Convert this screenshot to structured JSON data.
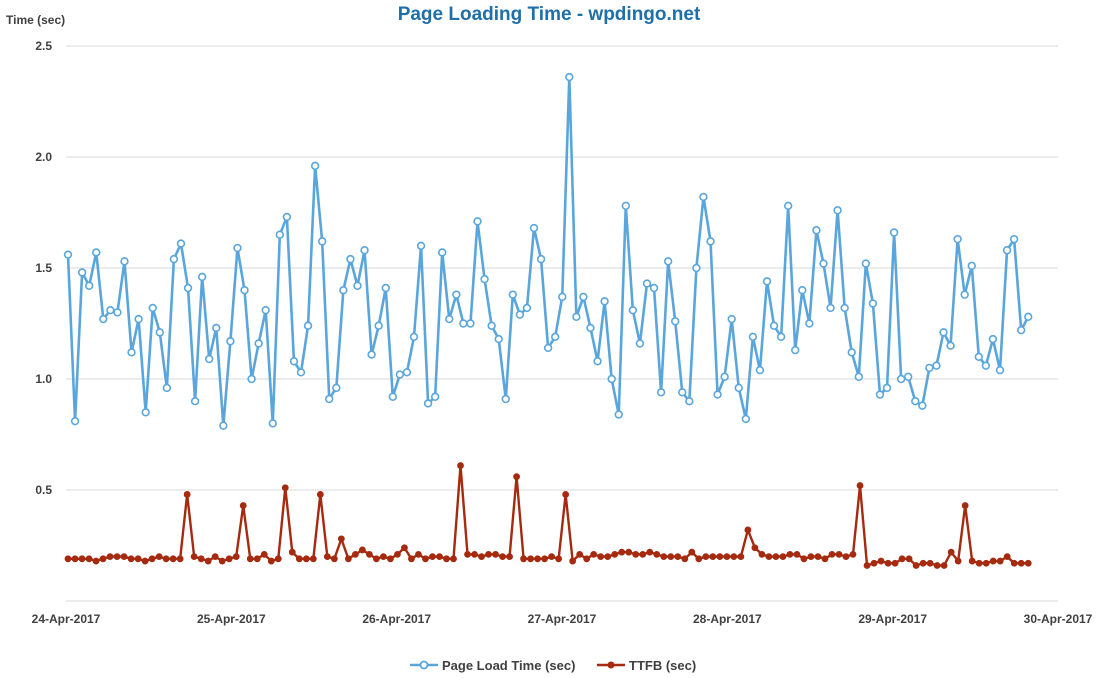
{
  "chart_data": {
    "type": "line",
    "title": "Page Loading Time - wpdingo.net",
    "ylabel": "Time (sec)",
    "xlabel": "",
    "ylim": [
      0,
      2.5
    ],
    "y_ticks": [
      "0.5",
      "1.0",
      "1.5",
      "2.0",
      "2.5"
    ],
    "x_ticks": [
      "24-Apr-2017",
      "25-Apr-2017",
      "26-Apr-2017",
      "27-Apr-2017",
      "28-Apr-2017",
      "29-Apr-2017",
      "30-Apr-2017"
    ],
    "x_start": "24-Apr-2017",
    "x_end": "30-Apr-2017",
    "grid": true,
    "legend_position": "bottom",
    "series": [
      {
        "name": "Page Load Time (sec)",
        "color": "#5aa6dc",
        "marker": "hollow-circle",
        "values": [
          1.56,
          0.81,
          1.48,
          1.42,
          1.57,
          1.27,
          1.31,
          1.3,
          1.53,
          1.12,
          1.27,
          0.85,
          1.32,
          1.21,
          0.96,
          1.54,
          1.61,
          1.41,
          0.9,
          1.46,
          1.09,
          1.23,
          0.79,
          1.17,
          1.59,
          1.4,
          1.0,
          1.16,
          1.31,
          0.8,
          1.65,
          1.73,
          1.08,
          1.03,
          1.24,
          1.96,
          1.62,
          0.91,
          0.96,
          1.4,
          1.54,
          1.42,
          1.58,
          1.11,
          1.24,
          1.41,
          0.92,
          1.02,
          1.03,
          1.19,
          1.6,
          0.89,
          0.92,
          1.57,
          1.27,
          1.38,
          1.25,
          1.25,
          1.71,
          1.45,
          1.24,
          1.18,
          0.91,
          1.38,
          1.29,
          1.32,
          1.68,
          1.54,
          1.14,
          1.19,
          1.37,
          2.36,
          1.28,
          1.37,
          1.23,
          1.08,
          1.35,
          1.0,
          0.84,
          1.78,
          1.31,
          1.16,
          1.43,
          1.41,
          0.94,
          1.53,
          1.26,
          0.94,
          0.9,
          1.5,
          1.82,
          1.62,
          0.93,
          1.01,
          1.27,
          0.96,
          0.82,
          1.19,
          1.04,
          1.44,
          1.24,
          1.19,
          1.78,
          1.13,
          1.4,
          1.25,
          1.67,
          1.52,
          1.32,
          1.76,
          1.32,
          1.12,
          1.01,
          1.52,
          1.34,
          0.93,
          0.96,
          1.66,
          1.0,
          1.01,
          0.9,
          0.88,
          1.05,
          1.06,
          1.21,
          1.15,
          1.63,
          1.38,
          1.51,
          1.1,
          1.06,
          1.18,
          1.04,
          1.58,
          1.63,
          1.22,
          1.28
        ]
      },
      {
        "name": "TTFB (sec)",
        "color": "#a52a0f",
        "marker": "filled-circle",
        "values": [
          0.19,
          0.19,
          0.19,
          0.19,
          0.18,
          0.19,
          0.2,
          0.2,
          0.2,
          0.19,
          0.19,
          0.18,
          0.19,
          0.2,
          0.19,
          0.19,
          0.19,
          0.48,
          0.2,
          0.19,
          0.18,
          0.2,
          0.18,
          0.19,
          0.2,
          0.43,
          0.19,
          0.19,
          0.21,
          0.18,
          0.19,
          0.51,
          0.22,
          0.19,
          0.19,
          0.19,
          0.48,
          0.2,
          0.19,
          0.28,
          0.19,
          0.21,
          0.23,
          0.21,
          0.19,
          0.2,
          0.19,
          0.21,
          0.24,
          0.19,
          0.21,
          0.19,
          0.2,
          0.2,
          0.19,
          0.19,
          0.61,
          0.21,
          0.21,
          0.2,
          0.21,
          0.21,
          0.2,
          0.2,
          0.56,
          0.19,
          0.19,
          0.19,
          0.19,
          0.2,
          0.19,
          0.48,
          0.18,
          0.21,
          0.19,
          0.21,
          0.2,
          0.2,
          0.21,
          0.22,
          0.22,
          0.21,
          0.21,
          0.22,
          0.21,
          0.2,
          0.2,
          0.2,
          0.19,
          0.22,
          0.19,
          0.2,
          0.2,
          0.2,
          0.2,
          0.2,
          0.2,
          0.32,
          0.24,
          0.21,
          0.2,
          0.2,
          0.2,
          0.21,
          0.21,
          0.19,
          0.2,
          0.2,
          0.19,
          0.21,
          0.21,
          0.2,
          0.21,
          0.52,
          0.16,
          0.17,
          0.18,
          0.17,
          0.17,
          0.19,
          0.19,
          0.16,
          0.17,
          0.17,
          0.16,
          0.16,
          0.22,
          0.18,
          0.43,
          0.18,
          0.17,
          0.17,
          0.18,
          0.18,
          0.2,
          0.17,
          0.17,
          0.17
        ]
      }
    ]
  }
}
